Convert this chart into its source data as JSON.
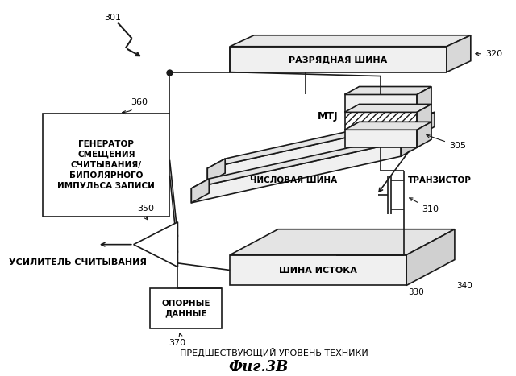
{
  "bg_color": "#ffffff",
  "title": "Фиг.3В",
  "subtitle": "ПРЕДШЕСТВУЮЩИЙ УРОВЕНЬ ТЕХНИКИ",
  "label_301": "301",
  "label_320": "320",
  "label_360": "360",
  "label_350": "350",
  "label_370": "370",
  "label_305": "305",
  "label_310": "310",
  "label_330": "330",
  "label_340": "340",
  "label_MTJ": "MTJ",
  "label_razr": "РАЗРЯДНАЯ ШИНА",
  "label_gen": "ГЕНЕРАТОР\nСМЕЩЕНИЯ\nСЧИТЫВАНИЯ/\nБИПОЛЯРНОГО\nИМПУЛЬСА ЗАПИСИ",
  "label_usilitel": "УСИЛИТЕЛЬ СЧИТЫВАНИЯ",
  "label_opornye": "ОПОРНЫЕ\nДАННЫЕ",
  "label_chislovaya": "ЧИСЛОВАЯ ШИНА",
  "label_transistor": "ТРАНЗИСТОР",
  "label_shina_istoka": "ШИНА ИСТОКА",
  "lc": "#1a1a1a",
  "lw": 1.2
}
